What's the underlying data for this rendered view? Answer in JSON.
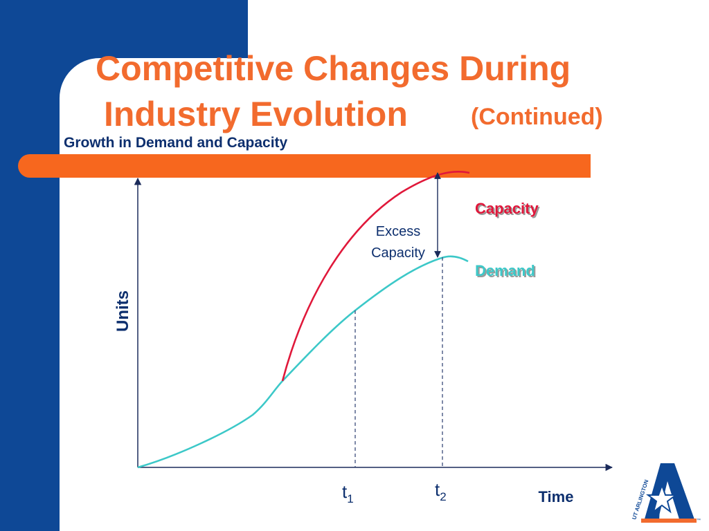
{
  "title": {
    "line1": "Competitive Changes During",
    "line2": "Industry Evolution",
    "continued": "(Continued)"
  },
  "subtitle": "Growth in Demand and Capacity",
  "diagram": {
    "y_axis_label": "Units",
    "x_axis_label": "Time",
    "capacity_label": "Capacity",
    "demand_label": "Demand",
    "excess_line1": "Excess",
    "excess_line2": "Capacity",
    "t1_base": "t",
    "t1_sub": "1",
    "t2_base": "t",
    "t2_sub": "2"
  },
  "logo": {
    "text": "UT ARLINGTON",
    "tm": "™"
  },
  "colors": {
    "blue": "#0e4896",
    "orange": "#f26b2e",
    "capacity": "#e0183a",
    "demand": "#3cc8c8",
    "navy": "#0d2f6e"
  }
}
